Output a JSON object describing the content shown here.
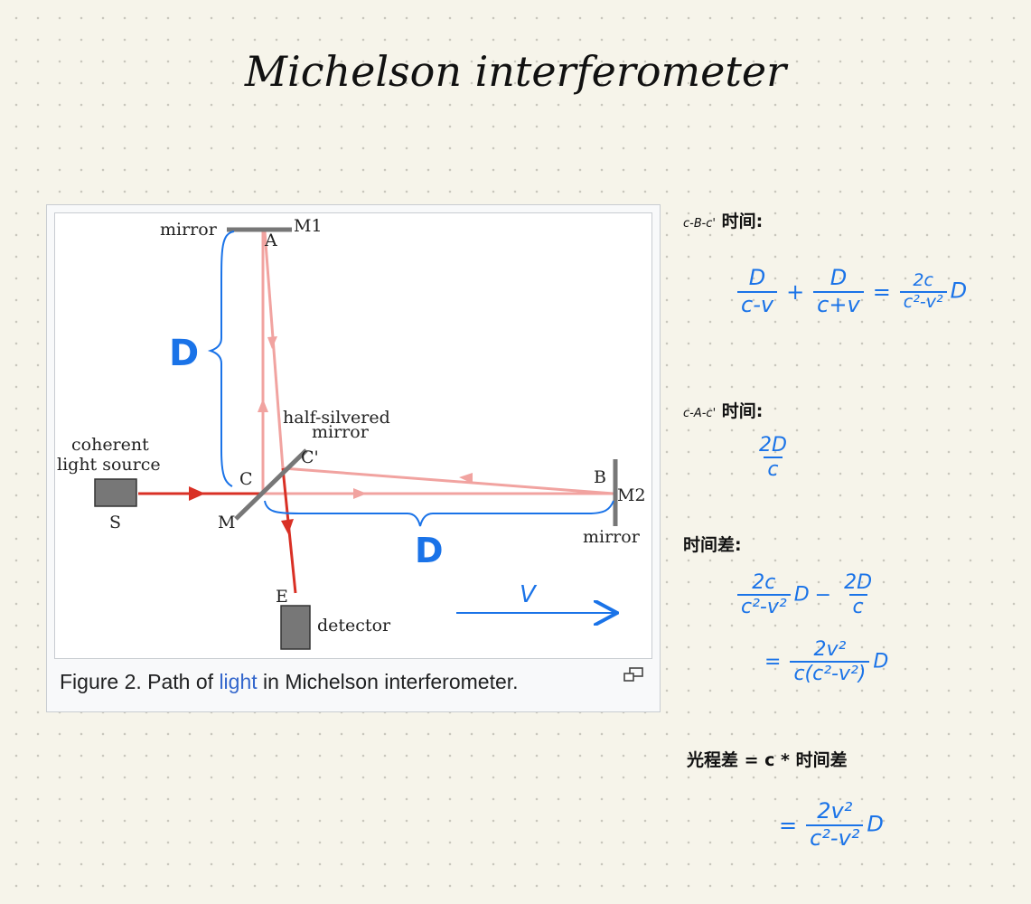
{
  "title": "Michelson interferometer",
  "figure": {
    "caption_prefix": "Figure 2. Path of ",
    "caption_link": "light",
    "caption_suffix": " in Michelson interferometer.",
    "labels": {
      "mirror_top": "mirror",
      "m1": "M1",
      "a": "A",
      "half_silvered_1": "half-silvered",
      "half_silvered_2": "mirror",
      "c_prime": "C'",
      "coherent_1": "coherent",
      "coherent_2": "light source",
      "c": "C",
      "b": "B",
      "m2": "M2",
      "s": "S",
      "m": "M",
      "mirror_right": "mirror",
      "e": "E",
      "detector": "detector"
    },
    "annotations": {
      "d_vertical": "D",
      "d_horizontal": "D",
      "v": "V"
    },
    "colors": {
      "beam_strong": "#d93025",
      "beam_light": "#f1a3a0",
      "mirror": "#777777",
      "handwriting": "#1a73e8"
    }
  },
  "notes": {
    "cbc": {
      "path": "c-B-c'",
      "label": "时间:",
      "t1_num": "D",
      "t1_den": "c-v",
      "plus": "+",
      "t2_num": "D",
      "t2_den": "c+v",
      "eq": "=",
      "r_num": "2c",
      "r_den": "c²-v²",
      "r_tail": "D"
    },
    "cac": {
      "path": "c-A-c'",
      "label": "时间:",
      "num": "2D",
      "den": "c"
    },
    "diff": {
      "label": "时间差:",
      "a_num": "2c",
      "a_den": "c²-v²",
      "a_tail": "D",
      "minus": "−",
      "b_num": "2D",
      "b_den": "c",
      "eq": "=",
      "r_num": "2v²",
      "r_den": "c(c²-v²)",
      "r_tail": "D"
    },
    "opd": {
      "label": "光程差 = c * 时间差",
      "eq": "=",
      "num": "2v²",
      "den": "c²-v²",
      "tail": "D"
    }
  }
}
